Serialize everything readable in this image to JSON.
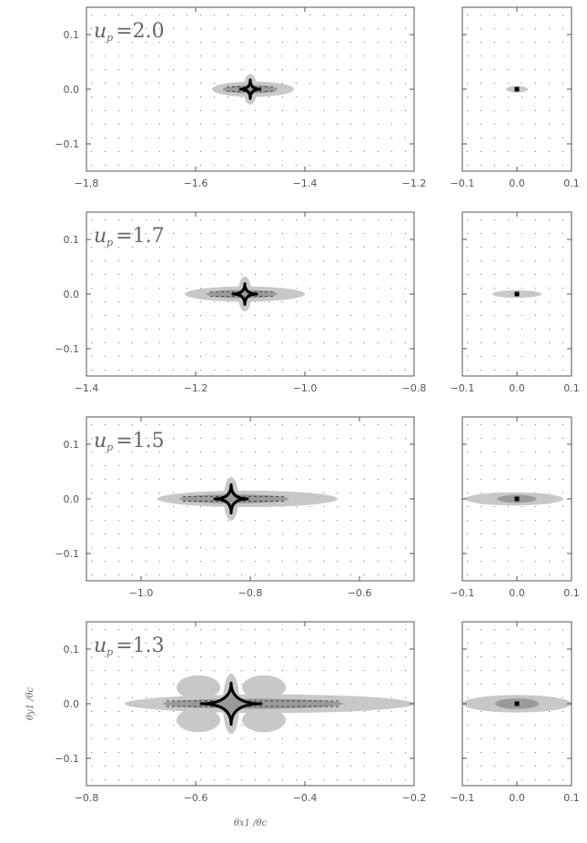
{
  "chart_data": {
    "type": "heatmap",
    "ylabel": "θy1 /θc",
    "xlabel": "θx1 /θc",
    "ylim": [
      -0.15,
      0.15
    ],
    "yticks": [
      0.1,
      0.0,
      -0.1
    ],
    "ytick_labels": [
      "0.1",
      "0.0",
      "−0.1"
    ],
    "panels": [
      {
        "label": "u_p = 2.0",
        "label_text": "=2.0",
        "left": {
          "xlim": [
            -1.8,
            -1.2
          ],
          "xticks": [
            -1.8,
            -1.6,
            -1.4,
            -1.2
          ],
          "xtick_labels": [
            "−1.8",
            "−1.6",
            "−1.4",
            "−1.2"
          ],
          "center": [
            -1.5,
            0.0
          ],
          "caustic_size": [
            0.018,
            0.017
          ],
          "lobe_x": [
            -1.57,
            -1.42
          ],
          "lobe_h": 0.014,
          "dark_x": [
            -1.55,
            -1.45
          ],
          "vert_lobe": 0.028,
          "side_lobes": false
        },
        "right": {
          "xlim": [
            -0.1,
            0.1
          ],
          "xticks": [
            -0.1,
            0.0,
            0.1
          ],
          "xtick_labels": [
            "−0.1",
            "0.0",
            "0.1"
          ],
          "center": [
            0.0,
            0.0
          ],
          "lobe_x": [
            -0.02,
            0.02
          ],
          "lobe_h": 0.006
        }
      },
      {
        "label": "u_p = 1.7",
        "label_text": "=1.7",
        "left": {
          "xlim": [
            -1.4,
            -0.8
          ],
          "xticks": [
            -1.4,
            -1.2,
            -1.0,
            -0.8
          ],
          "xtick_labels": [
            "−1.4",
            "−1.2",
            "−1.0",
            "−0.8"
          ],
          "center": [
            -1.11,
            0.0
          ],
          "caustic_size": [
            0.022,
            0.019
          ],
          "lobe_x": [
            -1.22,
            -1.0
          ],
          "lobe_h": 0.014,
          "dark_x": [
            -1.18,
            -1.05
          ],
          "vert_lobe": 0.032,
          "side_lobes": false
        },
        "right": {
          "xlim": [
            -0.1,
            0.1
          ],
          "xticks": [
            -0.1,
            0.0,
            0.1
          ],
          "xtick_labels": [
            "−0.1",
            "0.0",
            "0.1"
          ],
          "center": [
            0.0,
            0.0
          ],
          "lobe_x": [
            -0.045,
            0.045
          ],
          "lobe_h": 0.007
        }
      },
      {
        "label": "u_p = 1.5",
        "label_text": "=1.5",
        "left": {
          "xlim": [
            -1.1,
            -0.5
          ],
          "xticks": [
            -1.0,
            -0.8,
            -0.6
          ],
          "xtick_labels": [
            "−1.0",
            "−0.8",
            "−0.6"
          ],
          "center": [
            -0.835,
            0.0
          ],
          "caustic_size": [
            0.03,
            0.026
          ],
          "lobe_x": [
            -0.97,
            -0.64
          ],
          "lobe_h": 0.015,
          "dark_x": [
            -0.93,
            -0.73
          ],
          "vert_lobe": 0.04,
          "side_lobes": false
        },
        "right": {
          "xlim": [
            -0.1,
            0.1
          ],
          "xticks": [
            -0.1,
            0.0,
            0.1
          ],
          "xtick_labels": [
            "−0.1",
            "0.0",
            "0.1"
          ],
          "center": [
            0.0,
            0.0
          ],
          "lobe_x": [
            -0.095,
            0.085
          ],
          "lobe_h": 0.012
        }
      },
      {
        "label": "u_p = 1.3",
        "label_text": "=1.3",
        "left": {
          "xlim": [
            -0.8,
            -0.2
          ],
          "xticks": [
            -0.8,
            -0.6,
            -0.4,
            -0.2
          ],
          "xtick_labels": [
            "−0.8",
            "−0.6",
            "−0.4",
            "−0.2"
          ],
          "center": [
            -0.535,
            0.0
          ],
          "caustic_size": [
            0.055,
            0.038
          ],
          "lobe_x": [
            -0.73,
            -0.2
          ],
          "lobe_h": 0.017,
          "dark_x": [
            -0.66,
            -0.33
          ],
          "vert_lobe": 0.055,
          "side_lobes": true
        },
        "right": {
          "xlim": [
            -0.1,
            0.1
          ],
          "xticks": [
            -0.1,
            0.0,
            0.1
          ],
          "xtick_labels": [
            "−0.1",
            "0.0",
            "0.1"
          ],
          "center": [
            0.0,
            0.0
          ],
          "lobe_x": [
            -0.1,
            0.1
          ],
          "lobe_h": 0.016
        }
      }
    ],
    "colors": {
      "light": "#c8c8c8",
      "mid": "#9a9a9a",
      "dark": "#000000",
      "axis": "#555555",
      "dots": "#777777"
    }
  }
}
